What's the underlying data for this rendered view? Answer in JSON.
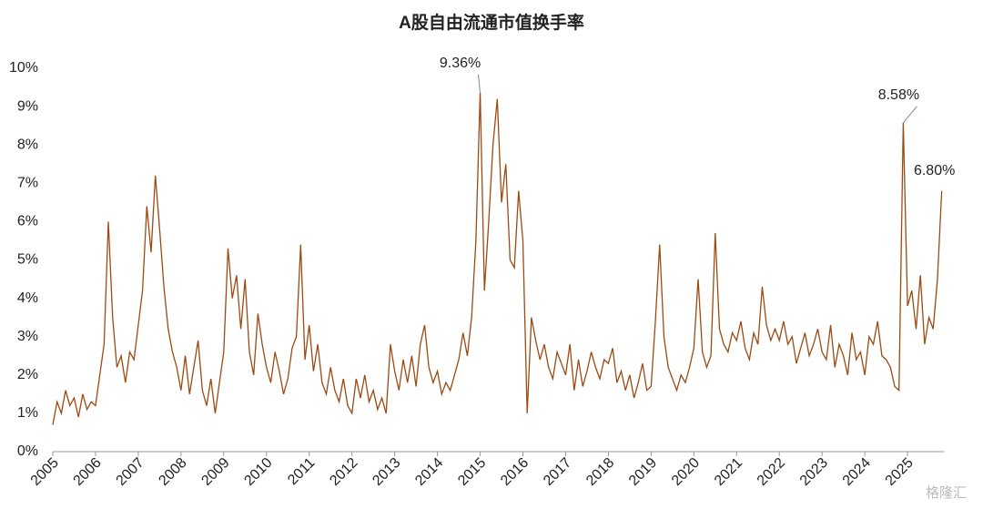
{
  "chart_data": {
    "type": "line",
    "title": "A股自由流通市值换手率",
    "color": "#9c4a12",
    "x": [
      2005.0,
      2005.1,
      2005.2,
      2005.3,
      2005.4,
      2005.5,
      2005.6,
      2005.7,
      2005.8,
      2005.9,
      2006.0,
      2006.1,
      2006.2,
      2006.3,
      2006.4,
      2006.5,
      2006.6,
      2006.7,
      2006.8,
      2006.9,
      2007.0,
      2007.1,
      2007.2,
      2007.3,
      2007.4,
      2007.5,
      2007.6,
      2007.7,
      2007.8,
      2007.9,
      2008.0,
      2008.1,
      2008.2,
      2008.3,
      2008.4,
      2008.5,
      2008.6,
      2008.7,
      2008.8,
      2008.9,
      2009.0,
      2009.1,
      2009.2,
      2009.3,
      2009.4,
      2009.5,
      2009.6,
      2009.7,
      2009.8,
      2009.9,
      2010.0,
      2010.1,
      2010.2,
      2010.3,
      2010.4,
      2010.5,
      2010.6,
      2010.7,
      2010.8,
      2010.9,
      2011.0,
      2011.1,
      2011.2,
      2011.3,
      2011.4,
      2011.5,
      2011.6,
      2011.7,
      2011.8,
      2011.9,
      2012.0,
      2012.1,
      2012.2,
      2012.3,
      2012.4,
      2012.5,
      2012.6,
      2012.7,
      2012.8,
      2012.9,
      2013.0,
      2013.1,
      2013.2,
      2013.3,
      2013.4,
      2013.5,
      2013.6,
      2013.7,
      2013.8,
      2013.9,
      2014.0,
      2014.1,
      2014.2,
      2014.3,
      2014.4,
      2014.5,
      2014.6,
      2014.7,
      2014.8,
      2014.9,
      2015.0,
      2015.1,
      2015.2,
      2015.3,
      2015.4,
      2015.5,
      2015.6,
      2015.7,
      2015.8,
      2015.9,
      2016.0,
      2016.1,
      2016.2,
      2016.3,
      2016.4,
      2016.5,
      2016.6,
      2016.7,
      2016.8,
      2016.9,
      2017.0,
      2017.1,
      2017.2,
      2017.3,
      2017.4,
      2017.5,
      2017.6,
      2017.7,
      2017.8,
      2017.9,
      2018.0,
      2018.1,
      2018.2,
      2018.3,
      2018.4,
      2018.5,
      2018.6,
      2018.7,
      2018.8,
      2018.9,
      2019.0,
      2019.1,
      2019.2,
      2019.3,
      2019.4,
      2019.5,
      2019.6,
      2019.7,
      2019.8,
      2019.9,
      2020.0,
      2020.1,
      2020.2,
      2020.3,
      2020.4,
      2020.5,
      2020.6,
      2020.7,
      2020.8,
      2020.9,
      2021.0,
      2021.1,
      2021.2,
      2021.3,
      2021.4,
      2021.5,
      2021.6,
      2021.7,
      2021.8,
      2021.9,
      2022.0,
      2022.1,
      2022.2,
      2022.3,
      2022.4,
      2022.5,
      2022.6,
      2022.7,
      2022.8,
      2022.9,
      2023.0,
      2023.1,
      2023.2,
      2023.3,
      2023.4,
      2023.5,
      2023.6,
      2023.7,
      2023.8,
      2023.9,
      2024.0,
      2024.1,
      2024.2,
      2024.3,
      2024.4,
      2024.5,
      2024.6,
      2024.7,
      2024.8,
      2024.9,
      2025.0,
      2025.1,
      2025.2,
      2025.3,
      2025.4,
      2025.5,
      2025.6,
      2025.7,
      2025.8
    ],
    "values": [
      0.7,
      1.3,
      1.0,
      1.6,
      1.2,
      1.4,
      0.9,
      1.5,
      1.1,
      1.3,
      1.2,
      2.0,
      2.8,
      6.0,
      3.5,
      2.2,
      2.5,
      1.8,
      2.6,
      2.4,
      3.3,
      4.2,
      6.4,
      5.2,
      7.2,
      5.8,
      4.3,
      3.2,
      2.6,
      2.2,
      1.6,
      2.5,
      1.5,
      2.2,
      2.9,
      1.6,
      1.2,
      1.9,
      1.0,
      1.8,
      2.6,
      5.3,
      4.0,
      4.6,
      3.2,
      4.5,
      2.6,
      2.0,
      3.6,
      2.8,
      2.2,
      1.8,
      2.6,
      2.1,
      1.5,
      1.9,
      2.7,
      3.0,
      5.4,
      2.4,
      3.3,
      2.1,
      2.8,
      1.8,
      1.5,
      2.2,
      1.6,
      1.3,
      1.9,
      1.2,
      1.0,
      1.9,
      1.4,
      2.0,
      1.3,
      1.6,
      1.1,
      1.4,
      1.0,
      2.8,
      2.1,
      1.6,
      2.4,
      1.8,
      2.5,
      1.7,
      2.8,
      3.3,
      2.2,
      1.8,
      2.1,
      1.5,
      1.8,
      1.6,
      2.0,
      2.4,
      3.1,
      2.5,
      3.5,
      5.5,
      9.36,
      4.2,
      6.0,
      8.0,
      9.2,
      6.5,
      7.5,
      5.0,
      4.8,
      6.8,
      5.5,
      1.0,
      3.5,
      2.9,
      2.4,
      2.8,
      2.2,
      1.9,
      2.6,
      2.3,
      2.0,
      2.8,
      1.6,
      2.4,
      1.7,
      2.1,
      2.6,
      2.2,
      1.9,
      2.4,
      2.3,
      2.7,
      1.8,
      2.1,
      1.6,
      2.0,
      1.4,
      1.8,
      2.3,
      1.6,
      1.7,
      3.4,
      5.4,
      3.0,
      2.2,
      1.9,
      1.6,
      2.0,
      1.8,
      2.2,
      2.7,
      4.5,
      2.6,
      2.2,
      2.5,
      5.7,
      3.2,
      2.8,
      2.6,
      3.1,
      2.9,
      3.4,
      2.7,
      2.4,
      3.1,
      2.8,
      4.3,
      3.3,
      2.9,
      3.2,
      2.9,
      3.4,
      2.8,
      3.0,
      2.3,
      2.7,
      3.1,
      2.5,
      2.8,
      3.2,
      2.6,
      2.4,
      3.3,
      2.2,
      2.8,
      2.5,
      2.0,
      3.1,
      2.4,
      2.6,
      2.0,
      3.0,
      2.8,
      3.4,
      2.5,
      2.4,
      2.2,
      1.7,
      1.6,
      8.58,
      3.8,
      4.2,
      3.2,
      4.6,
      2.8,
      3.5,
      3.2,
      4.5,
      6.8
    ],
    "xlim": [
      2005,
      2025.85
    ],
    "xticks": [
      2005,
      2006,
      2007,
      2008,
      2009,
      2010,
      2011,
      2012,
      2013,
      2014,
      2015,
      2016,
      2017,
      2018,
      2019,
      2020,
      2021,
      2022,
      2023,
      2024,
      2025
    ],
    "ylim": [
      0,
      10
    ],
    "yticks": [
      {
        "value": 0,
        "label": "0%"
      },
      {
        "value": 1,
        "label": "1%"
      },
      {
        "value": 2,
        "label": "2%"
      },
      {
        "value": 3,
        "label": "3%"
      },
      {
        "value": 4,
        "label": "4%"
      },
      {
        "value": 5,
        "label": "5%"
      },
      {
        "value": 6,
        "label": "6%"
      },
      {
        "value": 7,
        "label": "7%"
      },
      {
        "value": 8,
        "label": "8%"
      },
      {
        "value": 9,
        "label": "9%"
      },
      {
        "value": 10,
        "label": "10%"
      }
    ],
    "grid": false,
    "annotations": [
      {
        "x": 2015.0,
        "y": 9.36,
        "label": "9.36%"
      },
      {
        "x": 2024.9,
        "y": 8.58,
        "label": "8.58%"
      },
      {
        "x": 2025.8,
        "y": 6.8,
        "label": "6.80%"
      }
    ],
    "watermark": "格隆汇"
  }
}
